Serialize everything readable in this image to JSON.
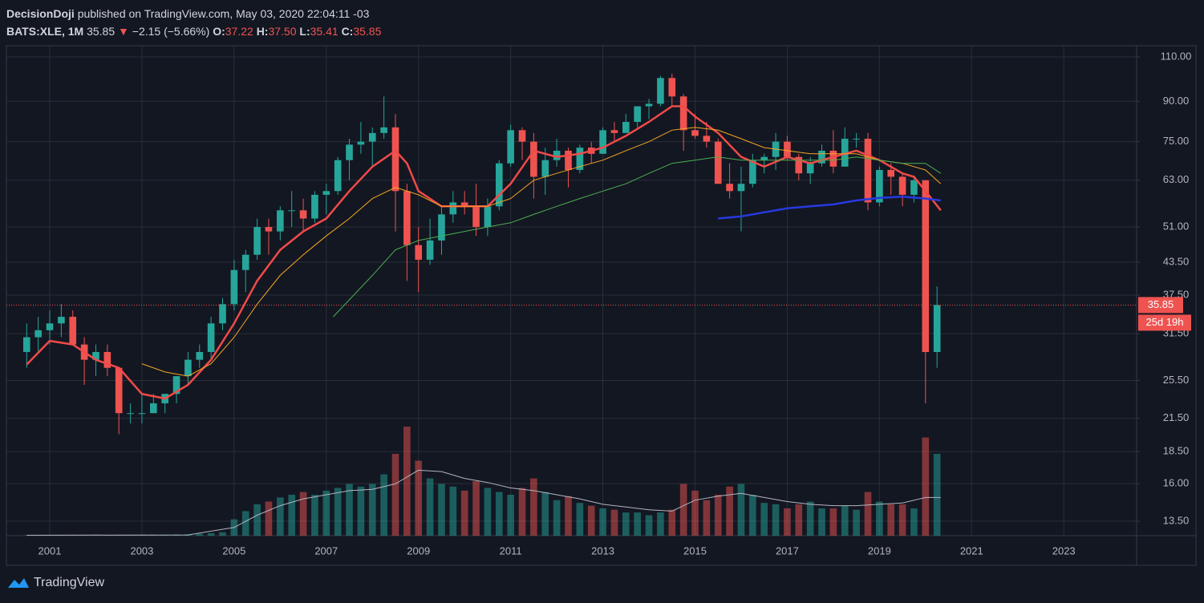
{
  "header": {
    "author": "DecisionDoji",
    "published": "published on TradingView.com, May 03, 2020 22:04:11 -03",
    "symbol": "BATS:XLE, 1M",
    "last": "35.85",
    "arrow": "▼",
    "change": "−2.15 (−5.66%)",
    "o_label": "O:",
    "o": "37.22",
    "h_label": "H:",
    "h": "37.50",
    "l_label": "L:",
    "l": "35.41",
    "c_label": "C:",
    "c": "35.85"
  },
  "footer": {
    "brand": "TradingView"
  },
  "chart_data": {
    "type": "candlestick",
    "log_scale": true,
    "grid": true,
    "up_color": "#26a69a",
    "down_color": "#ef5350",
    "xlim": [
      2000.06,
      2024.58
    ],
    "xticks": [
      2001,
      2003,
      2005,
      2007,
      2009,
      2011,
      2013,
      2015,
      2017,
      2019,
      2021,
      2023
    ],
    "ylim": [
      12.65,
      115.7
    ],
    "yticks": [
      {
        "value": 13.5,
        "label": "13.50"
      },
      {
        "value": 16,
        "label": "16.00"
      },
      {
        "value": 18.5,
        "label": "18.50"
      },
      {
        "value": 21.5,
        "label": "21.50"
      },
      {
        "value": 25.5,
        "label": "25.50"
      },
      {
        "value": 31.5,
        "label": "31.50"
      },
      {
        "value": 37.5,
        "label": "37.50"
      },
      {
        "value": 43.5,
        "label": "43.50"
      },
      {
        "value": 51,
        "label": "51.00"
      },
      {
        "value": 63,
        "label": "63.00"
      },
      {
        "value": 75,
        "label": "75.00"
      },
      {
        "value": 90,
        "label": "90.00"
      },
      {
        "value": 110,
        "label": "110.00"
      }
    ],
    "x": [
      2000.5,
      2000.75,
      2001,
      2001.25,
      2001.5,
      2001.75,
      2002,
      2002.25,
      2002.5,
      2002.75,
      2003,
      2003.25,
      2003.5,
      2003.75,
      2004,
      2004.25,
      2004.5,
      2004.75,
      2005,
      2005.25,
      2005.5,
      2005.75,
      2006,
      2006.25,
      2006.5,
      2006.75,
      2007,
      2007.25,
      2007.5,
      2007.75,
      2008,
      2008.25,
      2008.5,
      2008.75,
      2009,
      2009.25,
      2009.5,
      2009.75,
      2010,
      2010.25,
      2010.5,
      2010.75,
      2011,
      2011.25,
      2011.5,
      2011.75,
      2012,
      2012.25,
      2012.5,
      2012.75,
      2013,
      2013.25,
      2013.5,
      2013.75,
      2014,
      2014.25,
      2014.5,
      2014.75,
      2015,
      2015.25,
      2015.5,
      2015.75,
      2016,
      2016.25,
      2016.5,
      2016.75,
      2017,
      2017.25,
      2017.5,
      2017.75,
      2018,
      2018.25,
      2018.5,
      2018.75,
      2019,
      2019.25,
      2019.5,
      2019.75,
      2020,
      2020.25
    ],
    "open": [
      29,
      31,
      32,
      33,
      34,
      30,
      28,
      29,
      27,
      22,
      22,
      22,
      23,
      24,
      26,
      28,
      29,
      33,
      36,
      42,
      45,
      51,
      50,
      55,
      55,
      53,
      59,
      60,
      69,
      74,
      75,
      78,
      80,
      60,
      47,
      44,
      48,
      54,
      57,
      56,
      51,
      56,
      68,
      79,
      75,
      64,
      69,
      72,
      66,
      73,
      71,
      79,
      78,
      82,
      88,
      89,
      100,
      92,
      79,
      77,
      75,
      62,
      60,
      62,
      69,
      70,
      75,
      70,
      65,
      68,
      72,
      67,
      76,
      76,
      57,
      66,
      64,
      59,
      63,
      29
    ],
    "high": [
      33,
      34,
      35,
      36,
      35,
      31,
      30,
      30,
      27,
      23,
      24,
      24,
      24,
      26,
      29,
      30,
      34,
      37,
      44,
      46,
      53,
      53,
      56,
      60,
      58,
      60,
      62,
      70,
      76,
      82,
      80,
      92,
      85,
      62,
      51,
      53,
      56,
      60,
      60,
      62,
      58,
      69,
      81,
      80,
      78,
      73,
      76,
      73,
      74,
      75,
      80,
      82,
      85,
      88,
      91,
      101,
      102,
      93,
      85,
      82,
      76,
      68,
      67,
      71,
      71,
      78,
      77,
      71,
      70,
      74,
      79,
      80,
      78,
      78,
      67,
      68,
      65,
      64,
      63,
      39
    ],
    "low": [
      27,
      29,
      30,
      31,
      30,
      25,
      26,
      26,
      20,
      21,
      21,
      22,
      22,
      23,
      25,
      27,
      28,
      32,
      35,
      38,
      44,
      45,
      48,
      51,
      50,
      52,
      54,
      59,
      63,
      71,
      67,
      76,
      50,
      40,
      38,
      43,
      45,
      52,
      54,
      49,
      49,
      55,
      67,
      69,
      58,
      59,
      67,
      61,
      65,
      68,
      71,
      75,
      78,
      80,
      83,
      88,
      88,
      72,
      76,
      73,
      62,
      58,
      50,
      61,
      65,
      66,
      69,
      63,
      62,
      67,
      65,
      67,
      73,
      55,
      56,
      59,
      56,
      57,
      23,
      27
    ],
    "close": [
      31,
      32,
      33,
      34,
      30,
      28,
      29,
      27,
      22,
      22,
      22,
      23,
      24,
      26,
      28,
      29,
      33,
      36,
      42,
      45,
      51,
      50,
      55,
      55,
      53,
      59,
      60,
      69,
      74,
      75,
      78,
      80,
      60,
      47,
      44,
      48,
      54,
      57,
      56,
      51,
      56,
      68,
      79,
      75,
      64,
      69,
      72,
      66,
      73,
      71,
      79,
      78,
      82,
      88,
      89,
      100,
      92,
      79,
      77,
      75,
      62,
      60,
      62,
      69,
      70,
      75,
      70,
      65,
      68,
      72,
      67,
      76,
      76,
      57,
      66,
      64,
      59,
      63,
      29,
      35.85
    ],
    "volume": [
      3,
      3,
      3,
      3,
      3,
      4,
      4,
      4,
      4,
      4,
      5,
      5,
      6,
      8,
      10,
      14,
      18,
      25,
      120,
      180,
      230,
      250,
      280,
      300,
      320,
      300,
      330,
      350,
      380,
      360,
      380,
      450,
      600,
      800,
      550,
      420,
      380,
      360,
      330,
      400,
      350,
      320,
      300,
      350,
      420,
      320,
      260,
      290,
      240,
      220,
      200,
      190,
      170,
      170,
      150,
      170,
      190,
      380,
      330,
      260,
      300,
      360,
      380,
      300,
      240,
      230,
      200,
      230,
      250,
      200,
      200,
      220,
      190,
      320,
      250,
      230,
      230,
      200,
      720,
      600
    ],
    "volume_lim": [
      0,
      900
    ],
    "volume_ma": {
      "color": "#b2b5be",
      "x": [
        2000.5,
        2004,
        2005,
        2005.5,
        2006,
        2006.5,
        2007,
        2007.5,
        2008,
        2008.5,
        2009,
        2009.5,
        2010,
        2010.5,
        2011,
        2011.5,
        2012,
        2012.5,
        2013,
        2013.5,
        2014,
        2014.5,
        2015,
        2015.5,
        2016,
        2016.5,
        2017,
        2017.5,
        2018,
        2018.5,
        2019,
        2019.5,
        2020,
        2020.33
      ],
      "values": [
        3,
        5,
        60,
        150,
        220,
        270,
        300,
        330,
        340,
        380,
        480,
        470,
        420,
        390,
        350,
        330,
        300,
        270,
        230,
        210,
        190,
        180,
        260,
        290,
        310,
        280,
        250,
        230,
        220,
        220,
        230,
        240,
        280,
        280
      ]
    },
    "lines": [
      {
        "color": "#f04a48",
        "width": 2.5,
        "x": [
          2000.5,
          2001,
          2001.5,
          2002,
          2002.5,
          2003,
          2003.5,
          2004,
          2004.5,
          2005,
          2005.5,
          2006,
          2006.5,
          2007,
          2007.5,
          2008,
          2008.5,
          2008.75,
          2009,
          2009.5,
          2010,
          2010.5,
          2011,
          2011.5,
          2012,
          2012.5,
          2013,
          2013.5,
          2014,
          2014.5,
          2014.75,
          2015,
          2015.5,
          2016,
          2016.5,
          2017,
          2017.5,
          2018,
          2018.5,
          2019,
          2019.5,
          2019.75,
          2020,
          2020.33
        ],
        "values": [
          27.4,
          30.5,
          30,
          28,
          27,
          24,
          23.5,
          25,
          28,
          33,
          40,
          46,
          50,
          53,
          60,
          67,
          72,
          68,
          60,
          56,
          56,
          56,
          62,
          72,
          70,
          71,
          73,
          77,
          82,
          88,
          88,
          84,
          78,
          70,
          67,
          70,
          68,
          70,
          72,
          69,
          65,
          64,
          60,
          55
        ]
      },
      {
        "color": "#f5a623",
        "width": 1,
        "x": [
          2003,
          2003.5,
          2004,
          2004.5,
          2005,
          2005.5,
          2006,
          2006.5,
          2007,
          2007.5,
          2008,
          2008.5,
          2009,
          2009.5,
          2010,
          2010.5,
          2011,
          2011.5,
          2012,
          2012.5,
          2013,
          2013.5,
          2014,
          2014.5,
          2015,
          2015.5,
          2016,
          2016.5,
          2017,
          2017.5,
          2018,
          2018.5,
          2019,
          2019.5,
          2020,
          2020.33
        ],
        "values": [
          27.5,
          26.5,
          26,
          27.5,
          31,
          36,
          41,
          45,
          49,
          53,
          58,
          61,
          59,
          56,
          56,
          56,
          58,
          63,
          65,
          67,
          69,
          72,
          75,
          79,
          80,
          79,
          76,
          73,
          72,
          71,
          71,
          71,
          69,
          68,
          66,
          62
        ]
      },
      {
        "color": "#4caf50",
        "width": 1,
        "x": [
          2007.15,
          2008,
          2008.5,
          2009,
          2009.5,
          2010,
          2010.5,
          2011,
          2011.5,
          2012,
          2012.5,
          2013,
          2013.5,
          2014,
          2014.5,
          2015,
          2015.5,
          2016,
          2016.5,
          2017,
          2017.5,
          2018,
          2018.5,
          2019,
          2019.5,
          2020,
          2020.33
        ],
        "values": [
          34,
          41,
          46,
          48,
          49,
          50,
          51,
          52,
          54,
          56,
          58,
          60,
          62,
          65,
          68,
          69,
          70,
          69,
          69,
          69,
          69,
          69,
          70,
          69,
          68,
          68,
          65
        ]
      },
      {
        "color": "#2639e0",
        "width": 2.5,
        "x": [
          2015.5,
          2016,
          2016.5,
          2017,
          2017.5,
          2018,
          2018.5,
          2019,
          2019.5,
          2020,
          2020.33
        ],
        "values": [
          53,
          53.5,
          54.5,
          55.5,
          56,
          56.5,
          57.5,
          58.2,
          58.5,
          58,
          57.5
        ]
      }
    ],
    "last_price": {
      "value": 35.85,
      "countdown": "25d 19h",
      "color": "#ef5350"
    }
  }
}
